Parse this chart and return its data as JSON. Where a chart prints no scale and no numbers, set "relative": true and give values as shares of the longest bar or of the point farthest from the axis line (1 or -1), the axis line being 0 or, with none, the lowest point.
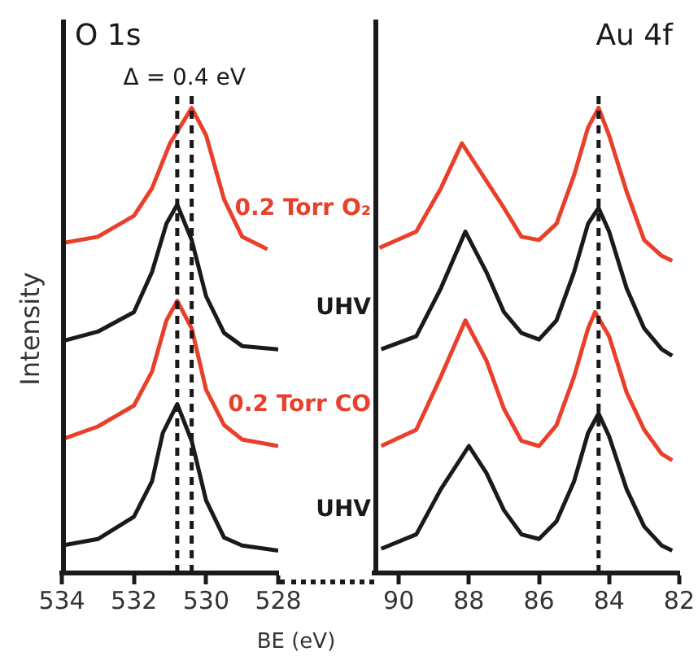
{
  "chart_data": [
    {
      "type": "line",
      "title": "O 1s",
      "xlabel": "BE (eV)",
      "ylabel": "Intensity",
      "relative": true,
      "xlim": [
        534,
        528
      ],
      "xticks": [
        534,
        532,
        530,
        528
      ],
      "grid": false,
      "legend": false,
      "marker": "none",
      "annotations": [
        "Δ = 0.4 eV"
      ],
      "ref_lines": [
        {
          "axis": "x",
          "value": 530.8,
          "line_style": "dashed",
          "color": "#1a1a1a"
        },
        {
          "axis": "x",
          "value": 530.4,
          "line_style": "dashed",
          "color": "#1a1a1a"
        }
      ],
      "series": [
        {
          "name": "UHV",
          "color": "#1a1a1a",
          "x": [
            534,
            533,
            532,
            531.5,
            531.2,
            530.8,
            530.4,
            530,
            529.5,
            529,
            528
          ],
          "values": [
            0.059,
            0.073,
            0.121,
            0.197,
            0.301,
            0.363,
            0.284,
            0.156,
            0.076,
            0.059,
            0.048
          ]
        },
        {
          "name": "0.2 Torr CO",
          "color": "#e8402a",
          "x": [
            534,
            533,
            532,
            531.5,
            531.1,
            530.8,
            530.4,
            530,
            529.5,
            529,
            528
          ],
          "values": [
            0.287,
            0.315,
            0.36,
            0.433,
            0.543,
            0.585,
            0.526,
            0.394,
            0.318,
            0.287,
            0.273
          ]
        },
        {
          "name": "UHV",
          "color": "#1a1a1a",
          "x": [
            534,
            533,
            532,
            531.5,
            531.1,
            530.8,
            530.4,
            530,
            529.5,
            529,
            528
          ],
          "values": [
            0.498,
            0.519,
            0.561,
            0.647,
            0.751,
            0.792,
            0.716,
            0.595,
            0.516,
            0.488,
            0.481
          ]
        },
        {
          "name": "0.2 Torr O₂",
          "color": "#e8402a",
          "x": [
            534,
            533,
            532,
            531.5,
            531,
            530.4,
            530,
            529.5,
            529,
            528.3
          ],
          "values": [
            0.709,
            0.723,
            0.768,
            0.827,
            0.924,
            1.0,
            0.941,
            0.803,
            0.723,
            0.696
          ]
        }
      ]
    },
    {
      "type": "line",
      "title": "Au 4f",
      "relative": true,
      "xlim": [
        90.7,
        82
      ],
      "xticks": [
        90,
        88,
        86,
        84,
        82
      ],
      "grid": false,
      "legend": false,
      "marker": "none",
      "ref_lines": [
        {
          "axis": "x",
          "value": 84.3,
          "line_style": "dashed",
          "color": "#1a1a1a"
        }
      ],
      "series": [
        {
          "color": "#1a1a1a",
          "x": [
            90.5,
            89.5,
            88.8,
            88,
            87.5,
            87,
            86.5,
            86,
            85.5,
            85,
            84.6,
            84.3,
            84,
            83.5,
            83,
            82.5,
            82.2
          ],
          "values": [
            0.052,
            0.083,
            0.18,
            0.273,
            0.215,
            0.135,
            0.083,
            0.073,
            0.111,
            0.197,
            0.301,
            0.343,
            0.294,
            0.18,
            0.1,
            0.059,
            0.048
          ]
        },
        {
          "color": "#e8402a",
          "x": [
            90.5,
            89.5,
            88.8,
            88.1,
            87.5,
            87,
            86.5,
            86,
            85.5,
            85,
            84.6,
            84.4,
            84,
            83.5,
            83,
            82.5,
            82.2
          ],
          "values": [
            0.273,
            0.308,
            0.422,
            0.543,
            0.457,
            0.353,
            0.284,
            0.273,
            0.318,
            0.422,
            0.526,
            0.561,
            0.509,
            0.388,
            0.308,
            0.256,
            0.242
          ]
        },
        {
          "color": "#1a1a1a",
          "x": [
            90.5,
            89.5,
            88.8,
            88.1,
            87.5,
            87,
            86.5,
            86,
            85.5,
            85,
            84.6,
            84.3,
            84,
            83.5,
            83,
            82.5,
            82.2
          ],
          "values": [
            0.481,
            0.509,
            0.612,
            0.734,
            0.647,
            0.561,
            0.516,
            0.502,
            0.543,
            0.647,
            0.751,
            0.785,
            0.734,
            0.612,
            0.526,
            0.481,
            0.467
          ]
        },
        {
          "color": "#e8402a",
          "x": [
            90.55,
            89.5,
            88.8,
            88.2,
            87,
            86.5,
            86,
            85.5,
            85,
            84.6,
            84.3,
            84,
            83.5,
            83,
            82.5,
            82.2
          ],
          "values": [
            0.699,
            0.734,
            0.827,
            0.924,
            0.785,
            0.723,
            0.716,
            0.751,
            0.855,
            0.958,
            1.0,
            0.941,
            0.82,
            0.716,
            0.682,
            0.671
          ]
        }
      ]
    }
  ]
}
